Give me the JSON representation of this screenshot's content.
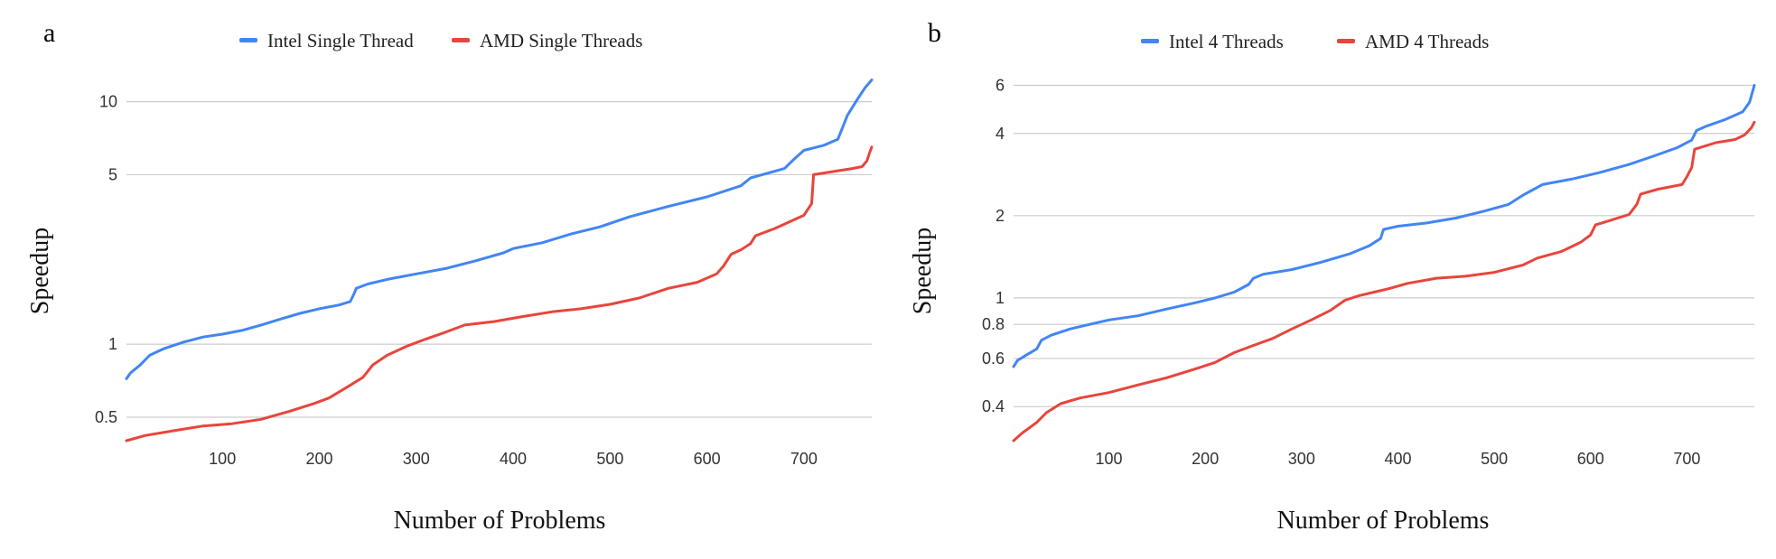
{
  "chart_data": [
    {
      "type": "line",
      "panel": "a",
      "xlabel": "Number of Problems",
      "ylabel": "Speedup",
      "yscale": "log",
      "xlim": [
        1,
        770
      ],
      "ylim": [
        0.4,
        13
      ],
      "xticks": [
        100,
        200,
        300,
        400,
        500,
        600,
        700
      ],
      "yticks": [
        0.5,
        1,
        5,
        10
      ],
      "series": [
        {
          "name": "Intel Single Thread",
          "color": "#4285f4",
          "points": [
            [
              1,
              0.72
            ],
            [
              5,
              0.76
            ],
            [
              15,
              0.82
            ],
            [
              25,
              0.9
            ],
            [
              40,
              0.96
            ],
            [
              60,
              1.02
            ],
            [
              80,
              1.07
            ],
            [
              100,
              1.1
            ],
            [
              120,
              1.14
            ],
            [
              140,
              1.2
            ],
            [
              160,
              1.27
            ],
            [
              180,
              1.34
            ],
            [
              200,
              1.4
            ],
            [
              220,
              1.45
            ],
            [
              232,
              1.5
            ],
            [
              236,
              1.62
            ],
            [
              238,
              1.7
            ],
            [
              250,
              1.77
            ],
            [
              270,
              1.85
            ],
            [
              300,
              1.95
            ],
            [
              330,
              2.05
            ],
            [
              360,
              2.2
            ],
            [
              390,
              2.38
            ],
            [
              400,
              2.48
            ],
            [
              430,
              2.62
            ],
            [
              460,
              2.85
            ],
            [
              490,
              3.05
            ],
            [
              520,
              3.35
            ],
            [
              560,
              3.7
            ],
            [
              600,
              4.05
            ],
            [
              635,
              4.5
            ],
            [
              645,
              4.85
            ],
            [
              665,
              5.1
            ],
            [
              680,
              5.3
            ],
            [
              690,
              5.8
            ],
            [
              700,
              6.3
            ],
            [
              720,
              6.6
            ],
            [
              735,
              7.0
            ],
            [
              745,
              8.8
            ],
            [
              755,
              10.2
            ],
            [
              763,
              11.4
            ],
            [
              770,
              12.3
            ]
          ]
        },
        {
          "name": "AMD Single Threads",
          "color": "#e8453c",
          "points": [
            [
              1,
              0.4
            ],
            [
              20,
              0.42
            ],
            [
              50,
              0.44
            ],
            [
              80,
              0.46
            ],
            [
              110,
              0.47
            ],
            [
              140,
              0.49
            ],
            [
              170,
              0.53
            ],
            [
              195,
              0.57
            ],
            [
              210,
              0.6
            ],
            [
              230,
              0.67
            ],
            [
              245,
              0.73
            ],
            [
              255,
              0.82
            ],
            [
              270,
              0.9
            ],
            [
              290,
              0.98
            ],
            [
              310,
              1.05
            ],
            [
              330,
              1.12
            ],
            [
              350,
              1.2
            ],
            [
              380,
              1.24
            ],
            [
              410,
              1.3
            ],
            [
              440,
              1.36
            ],
            [
              470,
              1.4
            ],
            [
              500,
              1.46
            ],
            [
              530,
              1.55
            ],
            [
              560,
              1.7
            ],
            [
              590,
              1.8
            ],
            [
              610,
              1.95
            ],
            [
              617,
              2.1
            ],
            [
              625,
              2.35
            ],
            [
              635,
              2.45
            ],
            [
              645,
              2.6
            ],
            [
              650,
              2.8
            ],
            [
              670,
              3.0
            ],
            [
              700,
              3.4
            ],
            [
              708,
              3.8
            ],
            [
              710,
              5.0
            ],
            [
              730,
              5.15
            ],
            [
              750,
              5.3
            ],
            [
              760,
              5.4
            ],
            [
              765,
              5.7
            ],
            [
              768,
              6.2
            ],
            [
              770,
              6.5
            ]
          ]
        }
      ]
    },
    {
      "type": "line",
      "panel": "b",
      "xlabel": "Number of Problems",
      "ylabel": "Speedup",
      "yscale": "log",
      "xlim": [
        1,
        770
      ],
      "ylim": [
        0.3,
        6.6
      ],
      "xticks": [
        100,
        200,
        300,
        400,
        500,
        600,
        700
      ],
      "yticks": [
        0.4,
        0.6,
        0.8,
        1,
        2,
        4,
        6
      ],
      "series": [
        {
          "name": "Intel 4 Threads",
          "color": "#4285f4",
          "points": [
            [
              1,
              0.56
            ],
            [
              5,
              0.59
            ],
            [
              15,
              0.62
            ],
            [
              25,
              0.65
            ],
            [
              30,
              0.7
            ],
            [
              40,
              0.73
            ],
            [
              60,
              0.77
            ],
            [
              80,
              0.8
            ],
            [
              100,
              0.83
            ],
            [
              130,
              0.86
            ],
            [
              160,
              0.91
            ],
            [
              190,
              0.96
            ],
            [
              210,
              1.0
            ],
            [
              230,
              1.05
            ],
            [
              245,
              1.12
            ],
            [
              250,
              1.18
            ],
            [
              260,
              1.22
            ],
            [
              290,
              1.27
            ],
            [
              320,
              1.35
            ],
            [
              350,
              1.45
            ],
            [
              370,
              1.55
            ],
            [
              382,
              1.65
            ],
            [
              385,
              1.78
            ],
            [
              400,
              1.83
            ],
            [
              430,
              1.88
            ],
            [
              460,
              1.96
            ],
            [
              490,
              2.08
            ],
            [
              515,
              2.2
            ],
            [
              530,
              2.38
            ],
            [
              550,
              2.6
            ],
            [
              580,
              2.72
            ],
            [
              610,
              2.88
            ],
            [
              640,
              3.08
            ],
            [
              665,
              3.3
            ],
            [
              690,
              3.55
            ],
            [
              705,
              3.78
            ],
            [
              710,
              4.1
            ],
            [
              720,
              4.25
            ],
            [
              740,
              4.5
            ],
            [
              758,
              4.8
            ],
            [
              765,
              5.2
            ],
            [
              770,
              6.0
            ]
          ]
        },
        {
          "name": "AMD 4 Threads",
          "color": "#e8453c",
          "points": [
            [
              1,
              0.3
            ],
            [
              10,
              0.32
            ],
            [
              25,
              0.35
            ],
            [
              35,
              0.38
            ],
            [
              50,
              0.41
            ],
            [
              70,
              0.43
            ],
            [
              100,
              0.45
            ],
            [
              130,
              0.48
            ],
            [
              160,
              0.51
            ],
            [
              190,
              0.55
            ],
            [
              210,
              0.58
            ],
            [
              230,
              0.63
            ],
            [
              250,
              0.67
            ],
            [
              270,
              0.71
            ],
            [
              290,
              0.77
            ],
            [
              310,
              0.83
            ],
            [
              330,
              0.9
            ],
            [
              345,
              0.98
            ],
            [
              360,
              1.02
            ],
            [
              390,
              1.08
            ],
            [
              410,
              1.13
            ],
            [
              440,
              1.18
            ],
            [
              470,
              1.2
            ],
            [
              500,
              1.24
            ],
            [
              530,
              1.32
            ],
            [
              545,
              1.4
            ],
            [
              570,
              1.48
            ],
            [
              590,
              1.6
            ],
            [
              600,
              1.7
            ],
            [
              605,
              1.85
            ],
            [
              620,
              1.92
            ],
            [
              640,
              2.02
            ],
            [
              648,
              2.2
            ],
            [
              652,
              2.4
            ],
            [
              670,
              2.5
            ],
            [
              695,
              2.6
            ],
            [
              700,
              2.78
            ],
            [
              705,
              3.0
            ],
            [
              708,
              3.5
            ],
            [
              730,
              3.7
            ],
            [
              750,
              3.8
            ],
            [
              760,
              3.95
            ],
            [
              767,
              4.2
            ],
            [
              770,
              4.4
            ]
          ]
        }
      ]
    }
  ]
}
